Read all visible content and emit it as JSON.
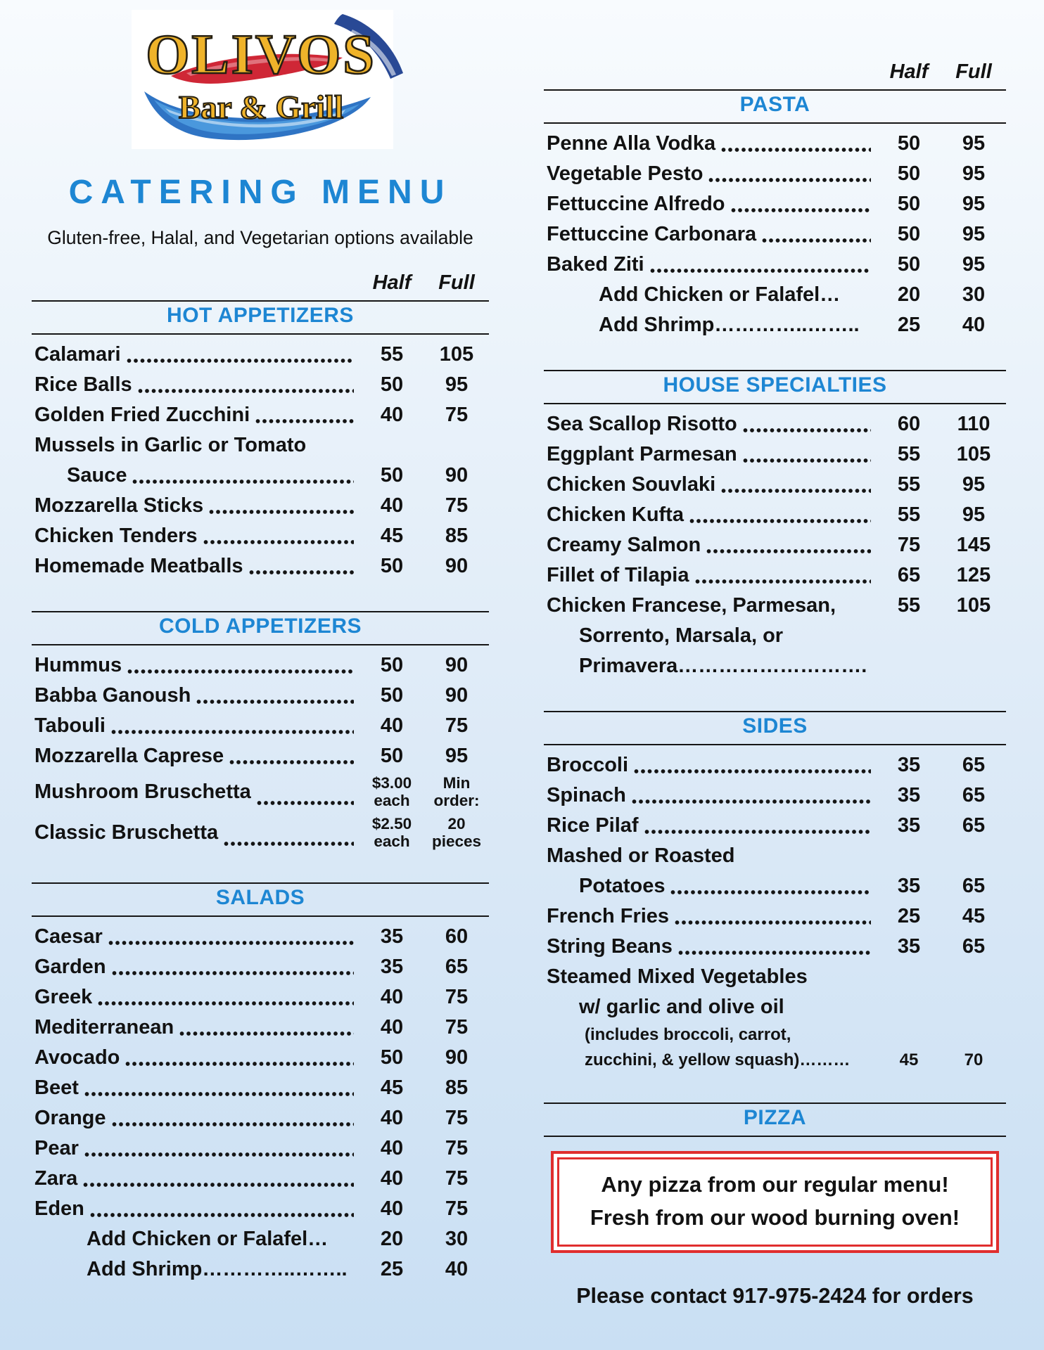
{
  "logo": {
    "name": "OLIVOS",
    "tagline": "Bar & Grill"
  },
  "header": {
    "title": "CATERING MENU",
    "subtitle": "Gluten-free, Halal, and Vegetarian options available"
  },
  "colors": {
    "accent_blue": "#1d86d3",
    "box_red": "#e02e2e",
    "gold": "#efb32a"
  },
  "columns": {
    "left": {
      "price_header": {
        "half": "Half",
        "full": "Full"
      },
      "sections": [
        {
          "title": "HOT APPETIZERS",
          "rows": [
            {
              "label": "Calamari",
              "leader": true,
              "half": "55",
              "full": "105"
            },
            {
              "label": "Rice Balls",
              "leader": true,
              "half": "50",
              "full": "95"
            },
            {
              "label": "Golden Fried Zucchini",
              "leader": true,
              "half": "40",
              "full": "75"
            },
            {
              "label": "Mussels in Garlic or Tomato"
            },
            {
              "label": "Sauce",
              "ind": 1,
              "leader": true,
              "half": "50",
              "full": "90"
            },
            {
              "label": "Mozzarella Sticks",
              "leader": true,
              "half": "40",
              "full": "75"
            },
            {
              "label": "Chicken Tenders",
              "leader": true,
              "half": "45",
              "full": "85"
            },
            {
              "label": "Homemade Meatballs",
              "leader": true,
              "half": "50",
              "full": "90"
            }
          ]
        },
        {
          "title": "COLD APPETIZERS",
          "rows": [
            {
              "label": "Hummus",
              "leader": true,
              "half": "50",
              "full": "90"
            },
            {
              "label": "Babba Ganoush",
              "leader": true,
              "half": "50",
              "full": "90"
            },
            {
              "label": "Tabouli",
              "leader": true,
              "half": "40",
              "full": "75"
            },
            {
              "label": "Mozzarella Caprese",
              "leader": true,
              "half": "50",
              "full": "95"
            },
            {
              "label": "Mushroom Bruschetta",
              "leader": true,
              "tall": true,
              "half": "$3.00 each",
              "full": "Min order:"
            },
            {
              "label": "Classic Bruschetta",
              "leader": true,
              "tall": true,
              "half": "$2.50 each",
              "full": "20 pieces"
            }
          ]
        },
        {
          "title": "SALADS",
          "rows": [
            {
              "label": "Caesar",
              "leader": true,
              "half": "35",
              "full": "60"
            },
            {
              "label": "Garden",
              "leader": true,
              "half": "35",
              "full": "65"
            },
            {
              "label": "Greek",
              "leader": true,
              "half": "40",
              "full": "75"
            },
            {
              "label": "Mediterranean",
              "leader": true,
              "half": "40",
              "full": "75"
            },
            {
              "label": "Avocado",
              "leader": true,
              "half": "50",
              "full": "90"
            },
            {
              "label": "Beet",
              "leader": true,
              "half": "45",
              "full": "85"
            },
            {
              "label": "Orange",
              "leader": true,
              "half": "40",
              "full": "75"
            },
            {
              "label": "Pear",
              "leader": true,
              "half": "40",
              "full": "75"
            },
            {
              "label": "Zara",
              "leader": true,
              "half": "40",
              "full": "75"
            },
            {
              "label": "Eden",
              "leader": true,
              "half": "40",
              "full": "75"
            },
            {
              "label": "Add Chicken or Falafel…",
              "ind": 2,
              "half": "20",
              "full": "30"
            },
            {
              "label": "Add Shrimp…………..……..",
              "ind": 2,
              "half": "25",
              "full": "40"
            }
          ]
        }
      ]
    },
    "right": {
      "price_header": {
        "half": "Half",
        "full": "Full"
      },
      "sections": [
        {
          "title": "PASTA",
          "rows": [
            {
              "label": "Penne Alla Vodka",
              "leader": true,
              "half": "50",
              "full": "95"
            },
            {
              "label": "Vegetable Pesto",
              "leader": true,
              "half": "50",
              "full": "95"
            },
            {
              "label": "Fettuccine Alfredo",
              "leader": true,
              "half": "50",
              "full": "95"
            },
            {
              "label": "Fettuccine Carbonara",
              "leader": true,
              "half": "50",
              "full": "95"
            },
            {
              "label": "Baked Ziti",
              "leader": true,
              "half": "50",
              "full": "95"
            },
            {
              "label": "Add Chicken or Falafel…",
              "ind": 2,
              "half": "20",
              "full": "30"
            },
            {
              "label": "Add Shrimp…………..……..",
              "ind": 2,
              "half": "25",
              "full": "40"
            }
          ]
        },
        {
          "title": "HOUSE SPECIALTIES",
          "rows": [
            {
              "label": "Sea Scallop Risotto",
              "leader": true,
              "half": "60",
              "full": "110"
            },
            {
              "label": "Eggplant Parmesan",
              "leader": true,
              "half": "55",
              "full": "105"
            },
            {
              "label": "Chicken Souvlaki",
              "leader": true,
              "half": "55",
              "full": "95"
            },
            {
              "label": "Chicken Kufta",
              "leader": true,
              "half": "55",
              "full": "95"
            },
            {
              "label": "Creamy Salmon",
              "leader": true,
              "half": "75",
              "full": "145"
            },
            {
              "label": "Fillet of Tilapia",
              "leader": true,
              "half": "65",
              "full": "125"
            },
            {
              "label": "Chicken Francese, Parmesan,",
              "half": "55",
              "full": "105"
            },
            {
              "label": "Sorrento, Marsala, or",
              "ind": 1
            },
            {
              "label": "Primavera……………………….",
              "ind": 1
            }
          ]
        },
        {
          "title": "SIDES",
          "rows": [
            {
              "label": "Broccoli",
              "leader": true,
              "half": "35",
              "full": "65"
            },
            {
              "label": "Spinach",
              "leader": true,
              "half": "35",
              "full": "65"
            },
            {
              "label": "Rice Pilaf",
              "leader": true,
              "half": "35",
              "full": "65"
            },
            {
              "label": "Mashed or Roasted"
            },
            {
              "label": "Potatoes",
              "ind": 1,
              "leader": true,
              "half": "35",
              "full": "65"
            },
            {
              "label": "French Fries",
              "leader": true,
              "half": "25",
              "full": "45"
            },
            {
              "label": "String Beans",
              "leader": true,
              "half": "35",
              "full": "65"
            },
            {
              "label": "Steamed Mixed Vegetables"
            },
            {
              "label": "w/ garlic and olive oil",
              "ind": 1
            },
            {
              "label": "(includes broccoli, carrot,",
              "ind": 3,
              "small": true
            },
            {
              "label": "zucchini, & yellow squash)………",
              "ind": 3,
              "small": true,
              "half": "45",
              "full": "70"
            }
          ]
        },
        {
          "title": "PIZZA",
          "type": "pizza",
          "box_lines": [
            "Any pizza from our regular menu!",
            "Fresh from our wood burning oven!"
          ]
        }
      ],
      "footer": "Please contact 917-975-2424 for orders"
    }
  }
}
